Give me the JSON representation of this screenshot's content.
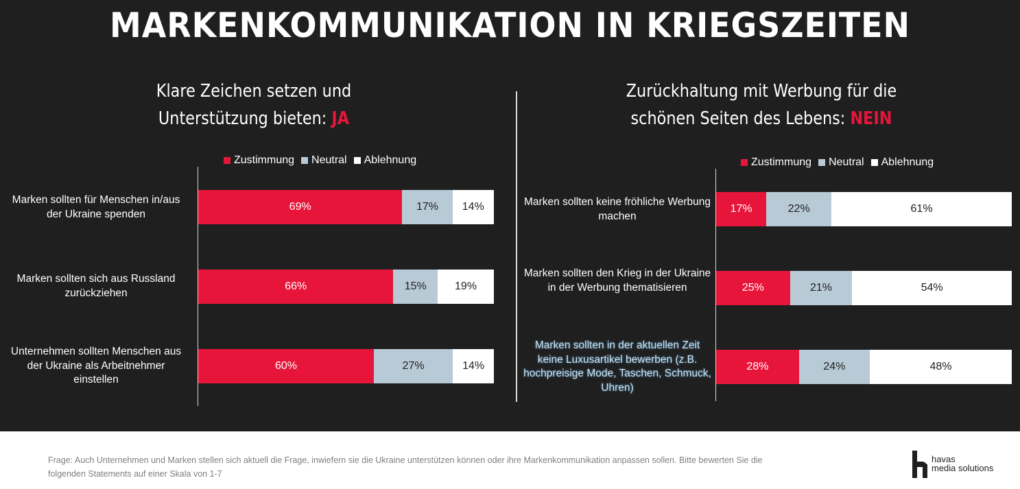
{
  "title": "MARKENKOMMUNIKATION IN KRIEGSZEITEN",
  "colors": {
    "zustimmung": "#e8153b",
    "neutral": "#b8cad6",
    "ablehnung": "#ffffff",
    "background": "#1f1f1f",
    "answer_accent": "#e8153b"
  },
  "chart_data": [
    {
      "type": "bar",
      "stacked": true,
      "orientation": "horizontal",
      "title_line1": "Klare Zeichen setzen und",
      "title_line2": "Unterstützung bieten: ",
      "title_answer": "JA",
      "legend_placement": "top",
      "series_names": [
        "Zustimmung",
        "Neutral",
        "Ablehnung"
      ],
      "rows": [
        {
          "category": "Marken sollten für Menschen in/aus der Ukraine spenden",
          "values": [
            69,
            17,
            14
          ],
          "labels": [
            "69%",
            "17%",
            "14%"
          ]
        },
        {
          "category": "Marken sollten sich aus Russland zurückziehen",
          "values": [
            66,
            15,
            19
          ],
          "labels": [
            "66%",
            "15%",
            "19%"
          ]
        },
        {
          "category": "Unternehmen sollten Menschen aus der Ukraine als Arbeitnehmer einstellen",
          "values": [
            60,
            27,
            14
          ],
          "labels": [
            "60%",
            "27%",
            "14%"
          ]
        }
      ]
    },
    {
      "type": "bar",
      "stacked": true,
      "orientation": "horizontal",
      "title_line1": "Zurückhaltung mit Werbung für die",
      "title_line2": "schönen Seiten des Lebens: ",
      "title_answer": "NEIN",
      "legend_placement": "top",
      "series_names": [
        "Zustimmung",
        "Neutral",
        "Ablehnung"
      ],
      "rows": [
        {
          "category": "Marken sollten keine fröhliche Werbung machen",
          "values": [
            17,
            22,
            61
          ],
          "labels": [
            "17%",
            "22%",
            "61%"
          ]
        },
        {
          "category": "Marken sollten den Krieg in der Ukraine in der Werbung thematisieren",
          "values": [
            25,
            21,
            54
          ],
          "labels": [
            "25%",
            "21%",
            "54%"
          ]
        },
        {
          "category": "Marken sollten in der aktuellen Zeit keine Luxusartikel bewerben (z.B. hochpreisige Mode, Taschen, Schmuck, Uhren)",
          "values": [
            28,
            24,
            48
          ],
          "labels": [
            "28%",
            "24%",
            "48%"
          ]
        }
      ]
    }
  ],
  "footnote": "Frage: Auch Unternehmen und Marken stellen sich aktuell die Frage, inwiefern sie die Ukraine unterstützen können oder ihre Markenkommunikation anpassen sollen. Bitte bewerten Sie die folgenden Statements auf einer Skala von 1-7",
  "logo": {
    "line1": "havas",
    "line2": "media solutions"
  }
}
